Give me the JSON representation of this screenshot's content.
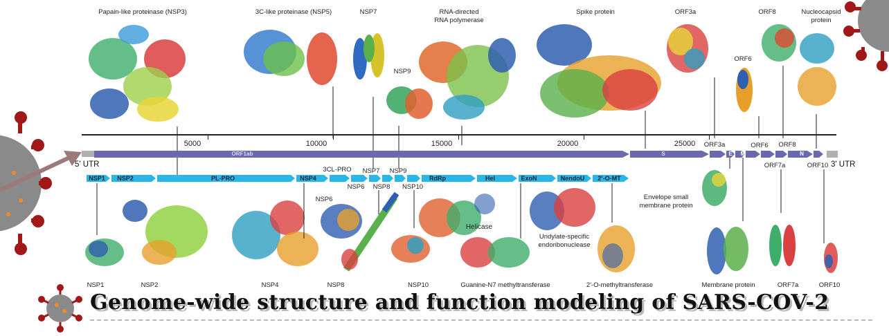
{
  "title": "Genome-wide structure and function modeling of SARS-COV-2",
  "ticks": [
    "5000",
    "10000",
    "15000",
    "20000",
    "25000"
  ],
  "utr5": "5' UTR",
  "utr3": "3' UTR",
  "genome_bar": {
    "orf1ab": "ORF1ab",
    "s": "S",
    "e": "E",
    "m": "M",
    "n": "N"
  },
  "nsp_segments": [
    "NSP1",
    "NSP2",
    "PL-PRO",
    "NSP4",
    "NSP6",
    "NSP8",
    "RdRp",
    "Hel",
    "ExoN",
    "NendoU",
    "2'-O-MT"
  ],
  "top_labels": {
    "nsp3": "Papain-like proteinase (NSP3)",
    "nsp5": "3C-like proteinase (NSP5)",
    "nsp7": "NSP7",
    "rdrp1": "RNA-directed",
    "rdrp2": "RNA polymerase",
    "nsp9": "NSP9",
    "spike": "Spike protein",
    "orf3a": "ORF3a",
    "orf8": "ORF8",
    "orf6": "ORF6",
    "nc1": "Nucleocapsid",
    "nc2": "protein"
  },
  "mid_labels": {
    "tcl": "3CL-PRO",
    "nsp7": "NSP7",
    "nsp9": "NSP9",
    "nsp6": "NSP6",
    "nsp8": "NSP8",
    "nsp10": "NSP10",
    "orf3a": "ORF3a",
    "orf6": "ORF6",
    "orf8": "ORF8",
    "orf7a": "ORF7a",
    "orf10": "ORF10",
    "nsp1": "NSP1",
    "nsp2": "NSP2",
    "nsp6b": "NSP6",
    "helicase": "Helicase",
    "uri1": "Uridylate-specific",
    "uri2": "endoribonuclease",
    "env1": "Envelope small",
    "env2": "membrane protein"
  },
  "bottom_labels": {
    "nsp1": "NSP1",
    "nsp2": "NSP2",
    "nsp4": "NSP4",
    "nsp8": "NSP8",
    "nsp10": "NSP10",
    "gn7": "Guanine-N7 methyltransferase",
    "omt": "2'-O-methyltransferase",
    "mem": "Membrane protein",
    "orf7a": "ORF7a",
    "orf10": "ORF10"
  },
  "colors": {
    "genome": "#6b69ad",
    "nsp": "#29b6e8",
    "utr": "#b0b0b0",
    "virus": "#9c1c1c",
    "virus_body": "#8a8a8a"
  }
}
